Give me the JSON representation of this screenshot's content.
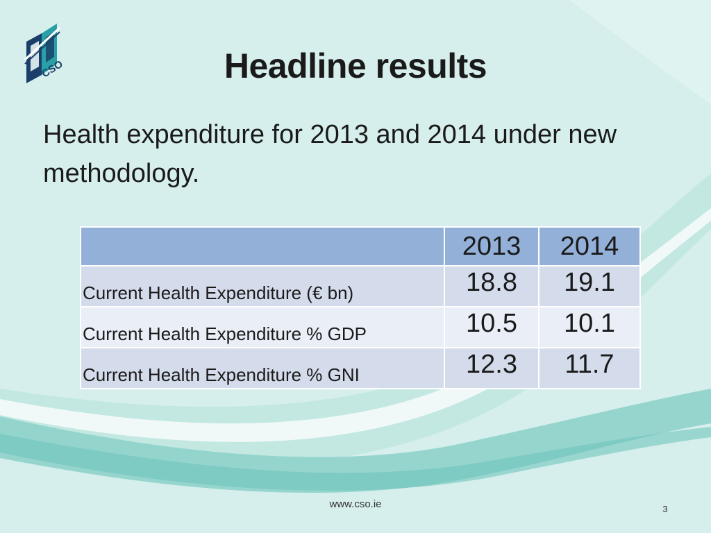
{
  "slide": {
    "title": "Headline results",
    "subtitle": "Health expenditure for 2013 and 2014 under new methodology.",
    "footer_url": "www.cso.ie",
    "page_number": "3"
  },
  "logo": {
    "text": "CSO",
    "colors": {
      "dark": "#1b3f6a",
      "teal": "#2a9fa6",
      "light": "#e8f4f4"
    }
  },
  "table": {
    "columns": [
      "",
      "2013",
      "2014"
    ],
    "rows": [
      {
        "label": "Current Health Expenditure (€ bn)",
        "v2013": "18.8",
        "v2014": "19.1"
      },
      {
        "label": "Current Health Expenditure % GDP",
        "v2013": "10.5",
        "v2014": "10.1"
      },
      {
        "label": "Current Health Expenditure % GNI",
        "v2013": "12.3",
        "v2014": "11.7"
      }
    ]
  },
  "theme": {
    "background": "#d6efec",
    "header_fill": "#93b1d8",
    "row_fill_dark": "#d4dcec",
    "row_fill_light": "#e9eef7",
    "swoosh_light": "#b4e1dc",
    "swoosh_mid": "#8fd0ca",
    "swoosh_white": "#ffffff"
  }
}
